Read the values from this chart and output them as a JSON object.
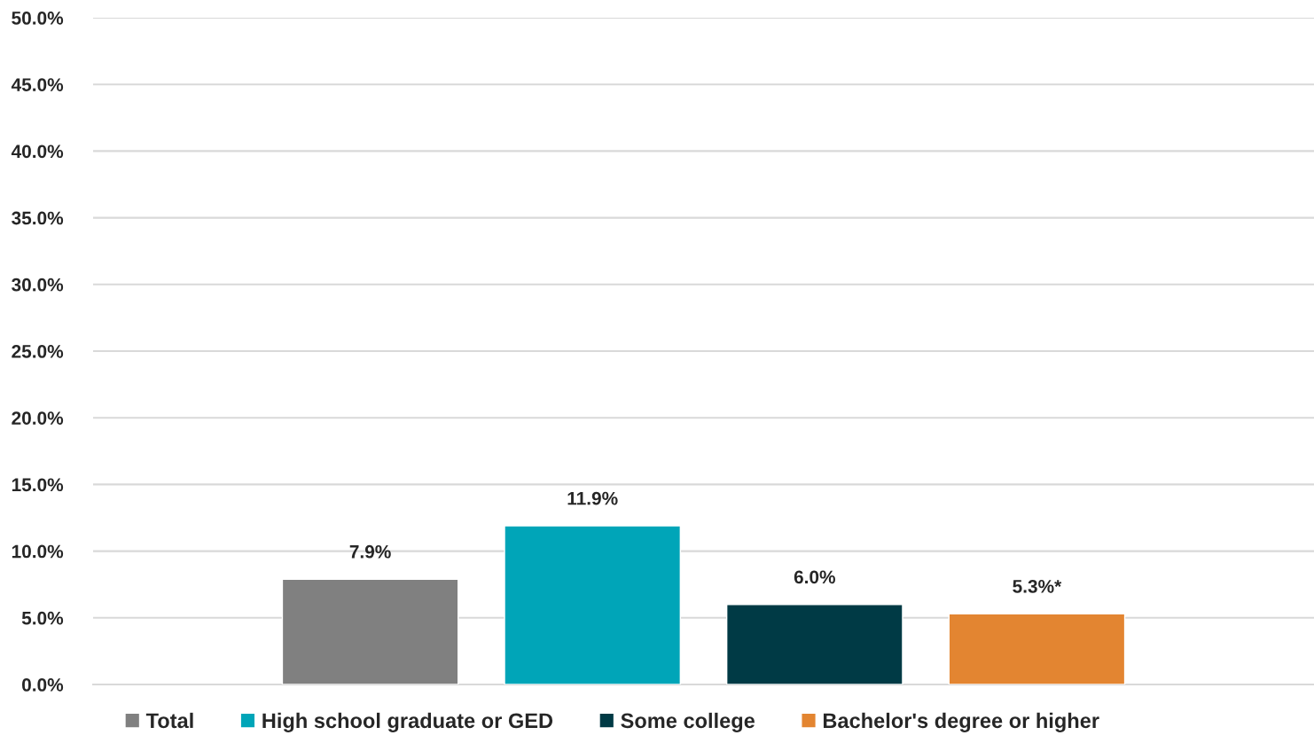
{
  "chart_data": {
    "type": "bar",
    "categories": [
      null
    ],
    "series": [
      {
        "name": "Total",
        "color": "#808080",
        "values": [
          7.9
        ],
        "value_labels": [
          "7.9%"
        ]
      },
      {
        "name": "High school graduate or GED",
        "color": "#00a5b8",
        "values": [
          11.9
        ],
        "value_labels": [
          "11.9%"
        ]
      },
      {
        "name": "Some college",
        "color": "#003a45",
        "values": [
          6.0
        ],
        "value_labels": [
          "6.0%"
        ]
      },
      {
        "name": "Bachelor's degree or higher",
        "color": "#e38531",
        "values": [
          5.3
        ],
        "value_labels": [
          "5.3%*"
        ]
      }
    ],
    "ylim": [
      0,
      50
    ],
    "yticks": [
      {
        "value": 0,
        "label": "0.0%"
      },
      {
        "value": 5,
        "label": "5.0%"
      },
      {
        "value": 10,
        "label": "10.0%"
      },
      {
        "value": 15,
        "label": "15.0%"
      },
      {
        "value": 20,
        "label": "20.0%"
      },
      {
        "value": 25,
        "label": "25.0%"
      },
      {
        "value": 30,
        "label": "30.0%"
      },
      {
        "value": 35,
        "label": "35.0%"
      },
      {
        "value": 40,
        "label": "40.0%"
      },
      {
        "value": 45,
        "label": "45.0%"
      },
      {
        "value": 50,
        "label": "50.0%"
      }
    ],
    "grid": "y",
    "legend": "bottom"
  }
}
